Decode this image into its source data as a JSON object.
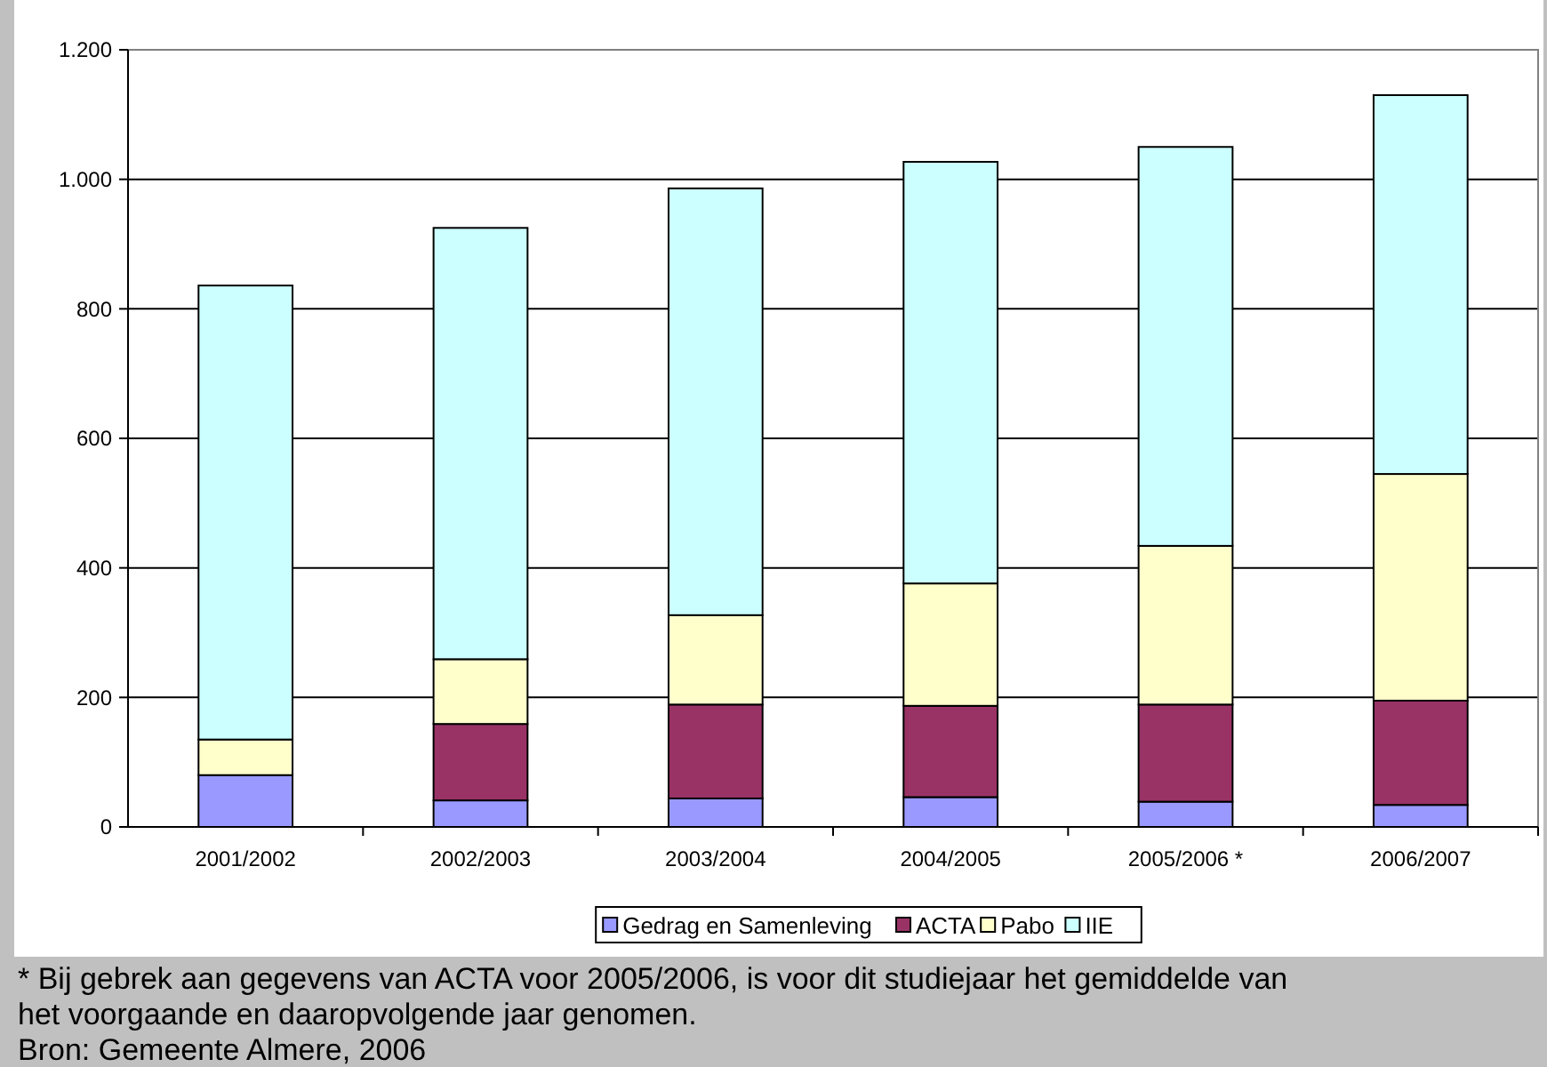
{
  "chart_data": {
    "type": "bar",
    "stacked": true,
    "categories": [
      "2001/2002",
      "2002/2003",
      "2003/2004",
      "2004/2005",
      "2005/2006 *",
      "2006/2007"
    ],
    "series": [
      {
        "name": "Gedrag en Samenleving",
        "color": "#9999ff",
        "values": [
          80,
          41,
          44,
          46,
          39,
          34
        ]
      },
      {
        "name": "ACTA",
        "color": "#993366",
        "values": [
          0,
          118,
          145,
          141,
          150,
          161
        ]
      },
      {
        "name": "Pabo",
        "color": "#ffffcc",
        "values": [
          55,
          100,
          138,
          189,
          245,
          350
        ]
      },
      {
        "name": "IIE",
        "color": "#ccffff",
        "values": [
          701,
          666,
          659,
          651,
          616,
          585
        ]
      }
    ],
    "ylim": [
      0,
      1200
    ],
    "yticks": [
      {
        "value": 0,
        "label": "0"
      },
      {
        "value": 200,
        "label": "200"
      },
      {
        "value": 400,
        "label": "400"
      },
      {
        "value": 600,
        "label": "600"
      },
      {
        "value": 800,
        "label": "800"
      },
      {
        "value": 1000,
        "label": "1.000"
      },
      {
        "value": 1200,
        "label": "1.200"
      }
    ],
    "grid": "y",
    "legend": "bottom",
    "annotations": [
      "* Bij gebrek aan gegevens van ACTA voor 2005/2006, is voor dit studiejaar het gemiddelde van het voorgaande en daaropvolgende jaar genomen.",
      "Bron: Gemeente Almere, 2006"
    ]
  }
}
